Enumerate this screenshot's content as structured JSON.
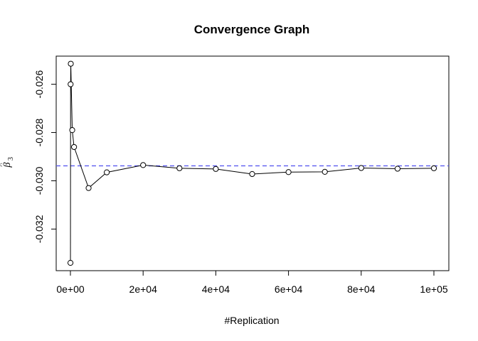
{
  "chart_data": {
    "type": "line",
    "title": "Convergence Graph",
    "xlabel": "#Replication",
    "ylabel": {
      "symbol": "β",
      "accent": "^",
      "subscript": "3"
    },
    "xlim": [
      0,
      100000
    ],
    "ylim": [
      -0.0334,
      -0.0251
    ],
    "x_ticks": [
      0,
      20000,
      40000,
      60000,
      80000,
      100000
    ],
    "x_tick_labels": [
      "0e+00",
      "2e+04",
      "4e+04",
      "6e+04",
      "8e+04",
      "1e+05"
    ],
    "y_ticks": [
      -0.026,
      -0.028,
      -0.03,
      -0.032
    ],
    "y_tick_labels": [
      "-0.026",
      "-0.028",
      "-0.030",
      "-0.032"
    ],
    "grid": false,
    "series": [
      {
        "x": [
          10,
          50,
          100,
          500,
          1000,
          5000,
          10000,
          20000,
          30000,
          40000,
          50000,
          60000,
          70000,
          80000,
          90000,
          100000
        ],
        "y": [
          -0.0334,
          -0.026,
          -0.02515,
          -0.0279,
          -0.0286,
          -0.0303,
          -0.02965,
          -0.02935,
          -0.02948,
          -0.02951,
          -0.02972,
          -0.02964,
          -0.02963,
          -0.02947,
          -0.0295,
          -0.02948
        ],
        "line_color": "#000000",
        "marker": "open-circle"
      }
    ],
    "reference_line": {
      "y": -0.02938,
      "style": "dashed",
      "color": "#5b5bf0"
    }
  }
}
